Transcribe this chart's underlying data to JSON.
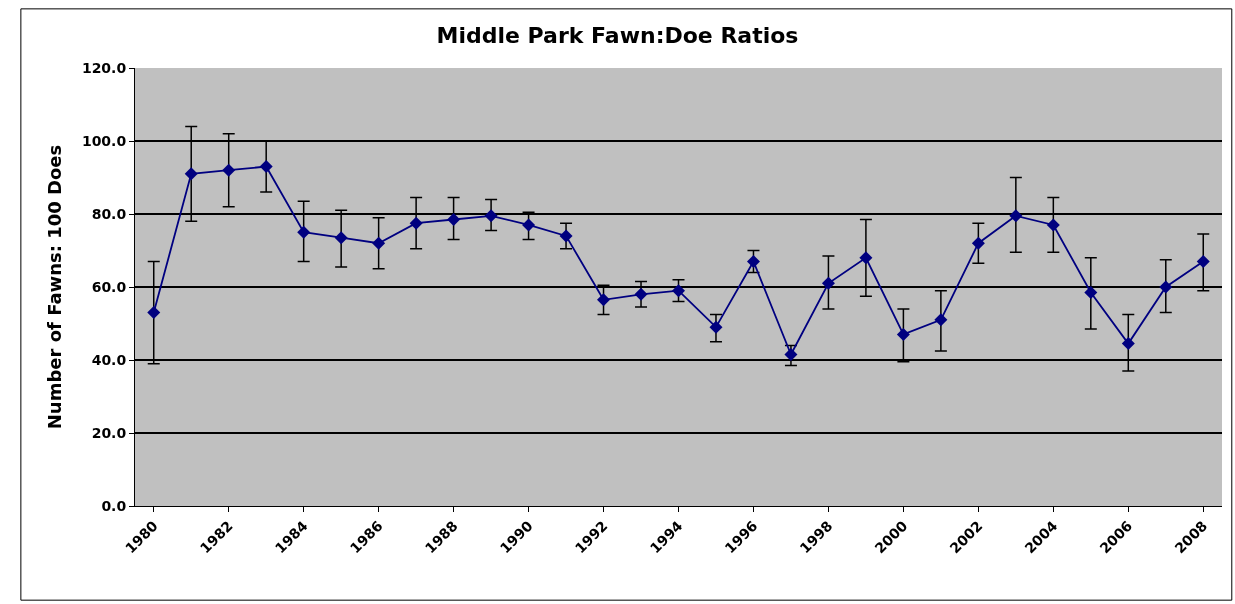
{
  "chart_data": {
    "type": "line",
    "title": "Middle Park Fawn:Doe Ratios",
    "ylabel": "Number of Fawns: 100 Does",
    "categories": [
      "1980",
      null,
      "1982",
      null,
      "1984",
      null,
      "1986",
      null,
      "1988",
      null,
      "1990",
      null,
      "1992",
      null,
      "1994",
      null,
      "1996",
      null,
      "1998",
      null,
      "2000",
      null,
      "2002",
      null,
      "2004",
      null,
      "2006",
      null,
      "2008"
    ],
    "series": [
      {
        "color": "#000080",
        "values": [
          53,
          91,
          92,
          93,
          75,
          73.5,
          72,
          77.5,
          78.5,
          79.5,
          77,
          74,
          56.5,
          58,
          59,
          49,
          67,
          41.5,
          61,
          68,
          47,
          51,
          72,
          79.5,
          77,
          58.5,
          44.5,
          60,
          67
        ],
        "errors": [
          [
            39,
            67
          ],
          [
            78,
            104
          ],
          [
            82,
            102
          ],
          [
            86,
            100
          ],
          [
            67,
            83.5
          ],
          [
            65.5,
            81
          ],
          [
            65,
            79
          ],
          [
            70.5,
            84.5
          ],
          [
            73,
            84.5
          ],
          [
            75.5,
            84
          ],
          [
            73,
            80.5
          ],
          [
            70.5,
            77.5
          ],
          [
            52.5,
            60.5
          ],
          [
            54.5,
            61.5
          ],
          [
            56,
            62
          ],
          [
            45,
            52.5
          ],
          [
            64,
            70
          ],
          [
            38.5,
            44
          ],
          [
            54,
            68.5
          ],
          [
            57.5,
            78.5
          ],
          [
            39.5,
            54
          ],
          [
            42.5,
            59
          ],
          [
            66.5,
            77.5
          ],
          [
            69.5,
            90
          ],
          [
            69.5,
            84.5
          ],
          [
            48.5,
            68
          ],
          [
            37,
            52.5
          ],
          [
            53,
            67.5
          ],
          [
            59,
            74.5
          ]
        ]
      }
    ],
    "ylim": [
      0,
      120
    ],
    "yticks": [
      {
        "value": 0,
        "label": "0.0"
      },
      {
        "value": 20,
        "label": "20.0"
      },
      {
        "value": 40,
        "label": "40.0"
      },
      {
        "value": 60,
        "label": "60.0"
      },
      {
        "value": 80,
        "label": "80.0"
      },
      {
        "value": 100,
        "label": "100.0"
      },
      {
        "value": 120,
        "label": "120.0"
      }
    ],
    "grid": "y",
    "marker": "diamond",
    "line_style": "solid"
  }
}
